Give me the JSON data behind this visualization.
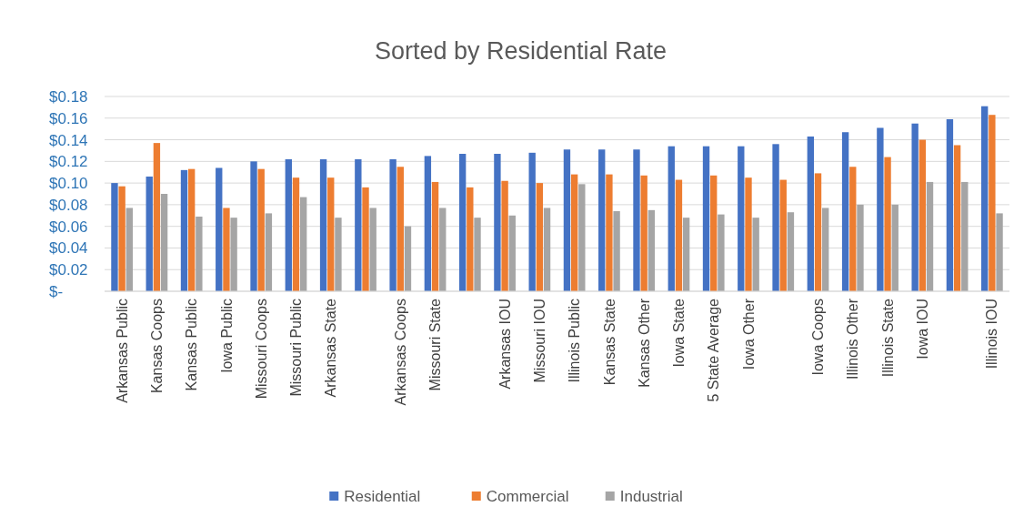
{
  "chart_data": {
    "type": "bar",
    "title": "Sorted by Residential Rate",
    "categories": [
      "Arkansas Public",
      "Kansas Coops",
      "Kansas Public",
      "Iowa Public",
      "Missouri Coops",
      "Missouri Public",
      "Arkansas State",
      null,
      "Arkansas Coops",
      "Missouri State",
      null,
      "Arkansas IOU",
      "Missouri IOU",
      "Illinois Public",
      "Kansas State",
      "Kansas Other",
      "Iowa State",
      "5 State Average",
      "Iowa Other",
      null,
      "Iowa Coops",
      "Illinois Other",
      "Illinois State",
      "Iowa IOU",
      null,
      "Illinois IOU"
    ],
    "series": [
      {
        "name": "Residential",
        "color": "#4472c4",
        "values": [
          0.1,
          0.106,
          0.112,
          0.114,
          0.12,
          0.122,
          0.122,
          0.122,
          0.122,
          0.125,
          0.127,
          0.127,
          0.128,
          0.131,
          0.131,
          0.131,
          0.134,
          0.134,
          0.134,
          0.136,
          0.143,
          0.147,
          0.151,
          0.155,
          0.159,
          0.171
        ]
      },
      {
        "name": "Commercial",
        "color": "#ed7d31",
        "values": [
          0.097,
          0.137,
          0.113,
          0.077,
          0.113,
          0.105,
          0.105,
          0.096,
          0.115,
          0.101,
          0.096,
          0.102,
          0.1,
          0.108,
          0.108,
          0.107,
          0.103,
          0.107,
          0.105,
          0.103,
          0.109,
          0.115,
          0.124,
          0.14,
          0.135,
          0.163
        ]
      },
      {
        "name": "Industrial",
        "color": "#a5a5a5",
        "values": [
          0.077,
          0.09,
          0.069,
          0.068,
          0.072,
          0.087,
          0.068,
          0.077,
          0.06,
          0.077,
          0.068,
          0.07,
          0.077,
          0.099,
          0.074,
          0.075,
          0.068,
          0.071,
          0.068,
          0.073,
          0.077,
          0.08,
          0.08,
          0.101,
          0.101,
          0.072
        ]
      }
    ],
    "ylim": [
      0,
      0.18
    ],
    "yticks": [
      {
        "value": 0,
        "label": "$-"
      },
      {
        "value": 0.02,
        "label": "$0.02"
      },
      {
        "value": 0.04,
        "label": "$0.04"
      },
      {
        "value": 0.06,
        "label": "$0.06"
      },
      {
        "value": 0.08,
        "label": "$0.08"
      },
      {
        "value": 0.1,
        "label": "$0.10"
      },
      {
        "value": 0.12,
        "label": "$0.12"
      },
      {
        "value": 0.14,
        "label": "$0.14"
      },
      {
        "value": 0.16,
        "label": "$0.16"
      },
      {
        "value": 0.18,
        "label": "$0.18"
      }
    ],
    "grid": "y",
    "legend": "bottom"
  }
}
